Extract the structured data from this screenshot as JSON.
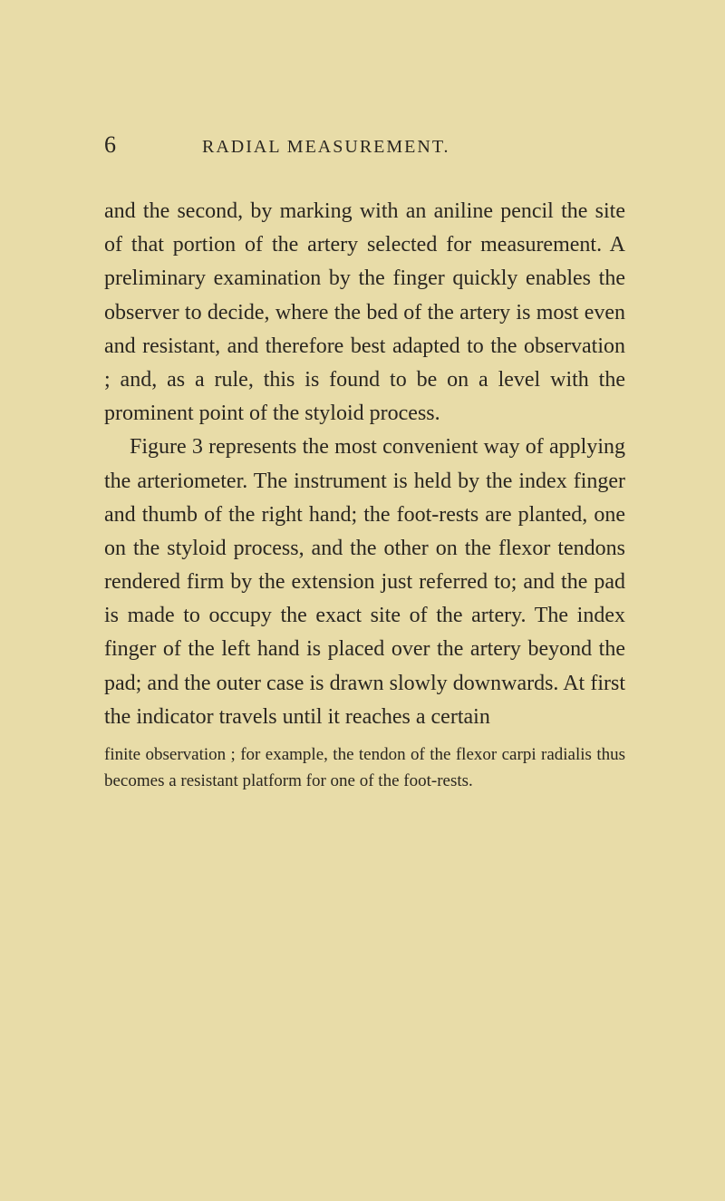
{
  "page": {
    "number": "6",
    "title": "RADIAL MEASUREMENT.",
    "background_color": "#e8dca8",
    "text_color": "#2a2620",
    "body_fontsize": 24,
    "footnote_fontsize": 19,
    "title_fontsize": 20,
    "pagenum_fontsize": 26
  },
  "paragraphs": [
    {
      "text": "and the second, by marking with an aniline pencil the site of that portion of the artery selected for measurement. A preliminary examination by the finger quickly enables the observer to decide, where the bed of the artery is most even and resistant, and therefore best adapted to the observation ; and, as a rule, this is found to be on a level with the prominent point of the styloid process.",
      "indent": false
    },
    {
      "text": "Figure 3 represents the most convenient way of applying the arteriometer. The instrument is held by the index finger and thumb of the right hand; the foot-rests are planted, one on the styloid process, and the other on the flexor tendons rendered firm by the extension just referred to; and the pad is made to occupy the exact site of the artery. The index finger of the left hand is placed over the artery beyond the pad; and the outer case is drawn slowly downwards. At first the indicator travels until it reaches a certain",
      "indent": true
    }
  ],
  "footnote": {
    "text": "finite observation ; for example, the tendon of the flexor carpi radialis thus becomes a resistant platform for one of the foot-rests."
  }
}
